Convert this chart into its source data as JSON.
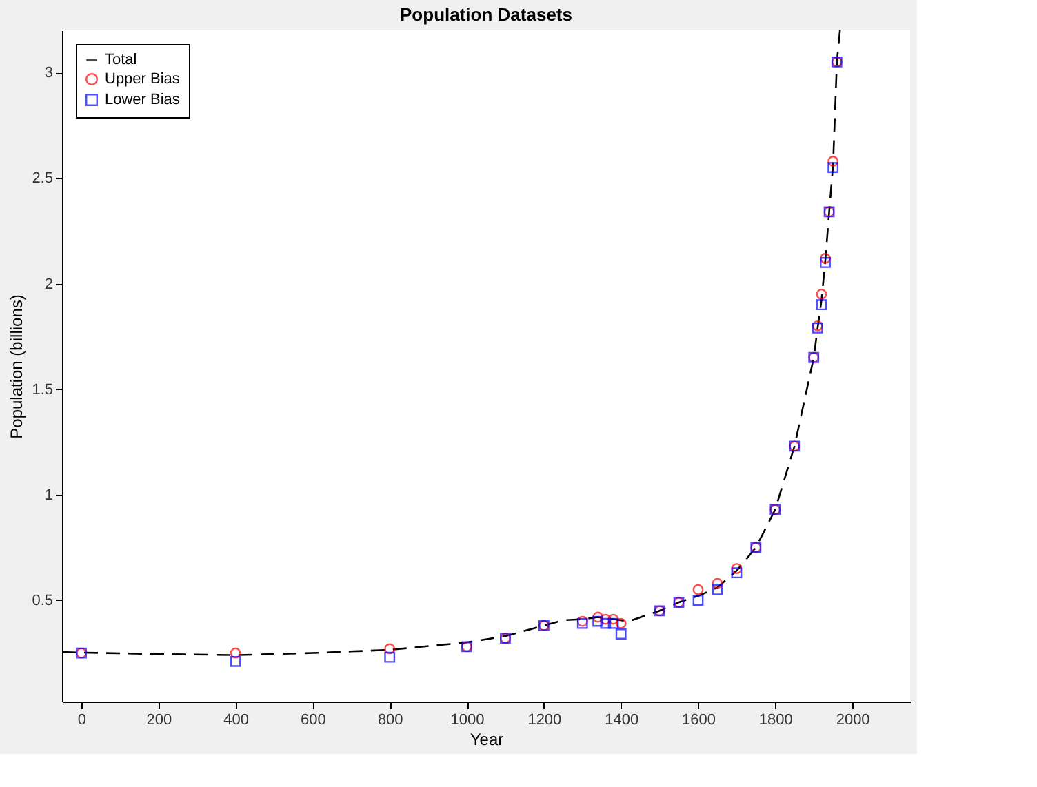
{
  "chart_data": {
    "type": "scatter",
    "title": "Population Datasets",
    "xlabel": "Year",
    "ylabel": "Population (billions)",
    "xlim": [
      -50,
      2150
    ],
    "xticks": [
      0,
      200,
      400,
      600,
      800,
      1000,
      1200,
      1400,
      1600,
      1800,
      2000
    ],
    "ylim": [
      0.02,
      3.2
    ],
    "yticks": [
      0.5,
      1,
      1.5,
      2,
      2.5,
      3
    ],
    "grid": false,
    "legend": "top left",
    "series": [
      {
        "name": "Total",
        "type": "line",
        "line_style": "dashed",
        "marker": "none",
        "color": "#000000",
        "x": [
          -50,
          0,
          200,
          400,
          600,
          800,
          1000,
          1100,
          1200,
          1250,
          1300,
          1340,
          1380,
          1420,
          1500,
          1550,
          1600,
          1650,
          1700,
          1750,
          1800,
          1850,
          1900,
          1910,
          1920,
          1930,
          1940,
          1950,
          1960,
          1968
        ],
        "values": [
          0.255,
          0.252,
          0.245,
          0.24,
          0.25,
          0.265,
          0.3,
          0.33,
          0.38,
          0.405,
          0.41,
          0.42,
          0.41,
          0.4,
          0.45,
          0.49,
          0.52,
          0.56,
          0.64,
          0.75,
          0.93,
          1.23,
          1.65,
          1.79,
          1.92,
          2.11,
          2.34,
          2.56,
          3.05,
          3.2
        ]
      },
      {
        "name": "Upper Bias",
        "marker": "circle",
        "color": "#ff0000",
        "x": [
          0,
          400,
          800,
          1000,
          1100,
          1200,
          1300,
          1340,
          1360,
          1380,
          1400,
          1500,
          1550,
          1600,
          1650,
          1700,
          1750,
          1800,
          1850,
          1900,
          1910,
          1920,
          1930,
          1940,
          1950,
          1960
        ],
        "values": [
          0.25,
          0.25,
          0.27,
          0.28,
          0.32,
          0.38,
          0.4,
          0.42,
          0.41,
          0.41,
          0.39,
          0.45,
          0.49,
          0.55,
          0.58,
          0.65,
          0.75,
          0.93,
          1.23,
          1.65,
          1.8,
          1.95,
          2.12,
          2.34,
          2.58,
          3.05
        ]
      },
      {
        "name": "Lower Bias",
        "marker": "square",
        "color": "#0000ff",
        "x": [
          0,
          400,
          800,
          1000,
          1100,
          1200,
          1300,
          1340,
          1360,
          1380,
          1400,
          1500,
          1550,
          1600,
          1650,
          1700,
          1750,
          1800,
          1850,
          1900,
          1910,
          1920,
          1930,
          1940,
          1950,
          1960
        ],
        "values": [
          0.25,
          0.21,
          0.23,
          0.28,
          0.32,
          0.38,
          0.39,
          0.4,
          0.39,
          0.39,
          0.34,
          0.45,
          0.49,
          0.5,
          0.55,
          0.63,
          0.75,
          0.93,
          1.23,
          1.65,
          1.79,
          1.9,
          2.1,
          2.34,
          2.55,
          3.05
        ]
      }
    ]
  }
}
